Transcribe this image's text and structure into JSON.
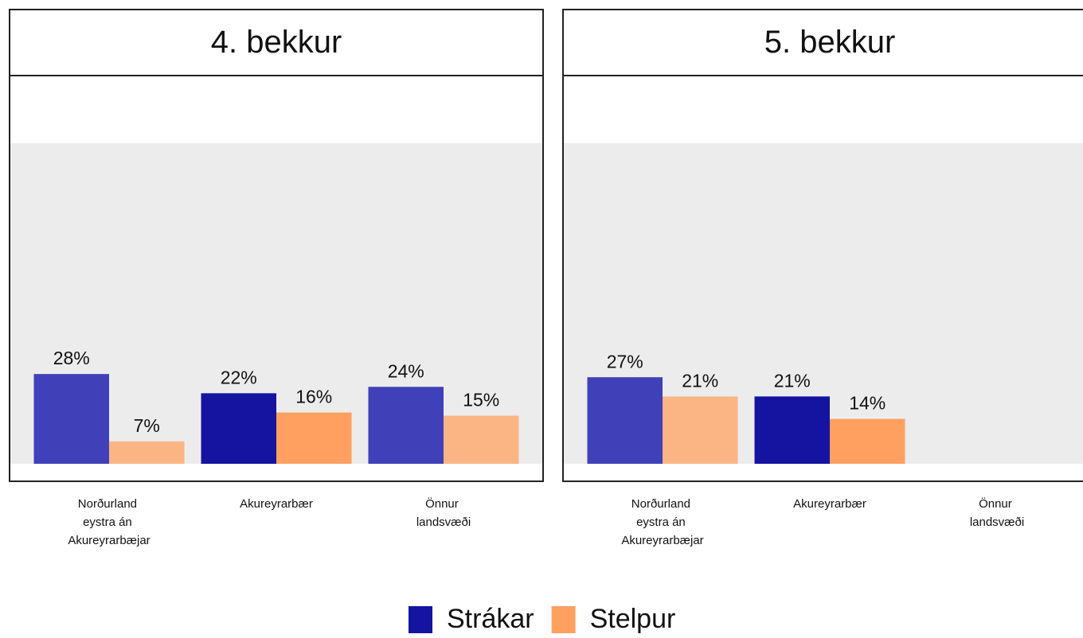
{
  "chart_data": [
    {
      "type": "bar",
      "title": "4. bekkur",
      "categories": [
        "Norðurland eystra án Akureyrarbæjar",
        "Akureyrarbær",
        "Önnur landsvæði"
      ],
      "series": [
        {
          "name": "Strákar",
          "color": "#1414a0",
          "colors": [
            "#4040b8",
            "#1414a0",
            "#4040b8"
          ],
          "values": [
            28,
            22,
            24
          ],
          "value_labels": [
            "28%",
            "22%",
            "24%"
          ]
        },
        {
          "name": "Stelpur",
          "color": "#ffa060",
          "colors": [
            "#fbb585",
            "#ffa060",
            "#fbb585"
          ],
          "values": [
            7,
            16,
            15
          ],
          "value_labels": [
            "7%",
            "16%",
            "15%"
          ]
        }
      ],
      "ylim": [
        0,
        100
      ]
    },
    {
      "type": "bar",
      "title": "5. bekkur",
      "categories": [
        "Norðurland eystra án Akureyrarbæjar",
        "Akureyrarbær",
        "Önnur landsvæði"
      ],
      "series": [
        {
          "name": "Strákar",
          "color": "#1414a0",
          "colors": [
            "#4040b8",
            "#1414a0",
            "#4040b8"
          ],
          "values": [
            27,
            21,
            null
          ],
          "value_labels": [
            "27%",
            "21%",
            null
          ]
        },
        {
          "name": "Stelpur",
          "color": "#ffa060",
          "colors": [
            "#fbb585",
            "#ffa060",
            "#fbb585"
          ],
          "values": [
            21,
            14,
            null
          ],
          "value_labels": [
            "21%",
            "14%",
            null
          ]
        }
      ],
      "ylim": [
        0,
        100
      ]
    }
  ]
}
